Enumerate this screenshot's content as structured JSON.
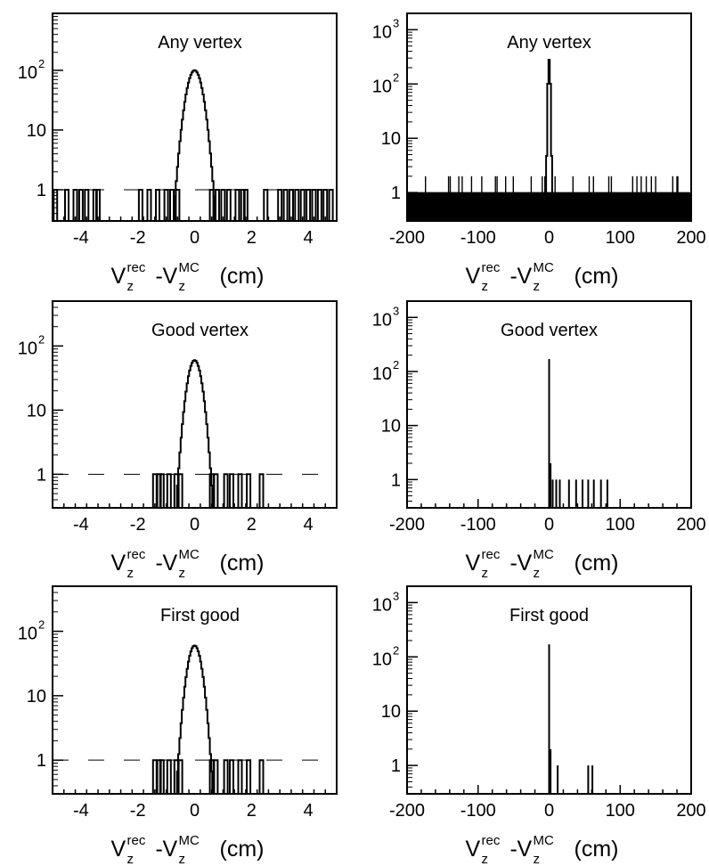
{
  "chart_data": [
    {
      "type": "histogram",
      "title": "Any vertex",
      "xlim": [
        -5,
        5
      ],
      "ylim": [
        0.3,
        900
      ],
      "yscale": "log",
      "xticks": [
        -4,
        -2,
        0,
        2,
        4
      ],
      "xtick_labels": [
        "-4",
        "-2",
        "0",
        "2",
        "4"
      ],
      "yticks": [
        1,
        10,
        100
      ],
      "ytick_labels": [
        "1",
        "10",
        "10",
        "2"
      ],
      "xlabel": {
        "base1": "V",
        "sub1": "z",
        "sup1": "rec",
        "dash": "-",
        "base2": "V",
        "sub2": "z",
        "sup2": "MC",
        "unit": "(cm)"
      },
      "peak": {
        "center": 0.0,
        "height": 100,
        "sigma": 0.22
      },
      "outliers": [
        {
          "x": -4.9,
          "y": 1
        },
        {
          "x": -4.5,
          "y": 1
        },
        {
          "x": -4.2,
          "y": 1
        },
        {
          "x": -4.0,
          "y": 1
        },
        {
          "x": -3.8,
          "y": 1
        },
        {
          "x": -3.5,
          "y": 1
        },
        {
          "x": -3.4,
          "y": 1
        },
        {
          "x": -1.9,
          "y": 1
        },
        {
          "x": -1.6,
          "y": 1
        },
        {
          "x": -1.3,
          "y": 1
        },
        {
          "x": -1.0,
          "y": 1
        },
        {
          "x": -0.8,
          "y": 1
        },
        {
          "x": -0.6,
          "y": 1
        },
        {
          "x": 0.6,
          "y": 1
        },
        {
          "x": 0.8,
          "y": 1
        },
        {
          "x": 1.0,
          "y": 1
        },
        {
          "x": 1.2,
          "y": 1
        },
        {
          "x": 1.5,
          "y": 1
        },
        {
          "x": 1.7,
          "y": 1
        },
        {
          "x": 1.8,
          "y": 1
        },
        {
          "x": 2.5,
          "y": 1
        },
        {
          "x": 3.0,
          "y": 1
        },
        {
          "x": 3.2,
          "y": 1
        },
        {
          "x": 3.4,
          "y": 1
        },
        {
          "x": 3.6,
          "y": 1
        },
        {
          "x": 3.8,
          "y": 1
        },
        {
          "x": 4.0,
          "y": 1
        },
        {
          "x": 4.2,
          "y": 1
        },
        {
          "x": 4.4,
          "y": 1
        },
        {
          "x": 4.6,
          "y": 1
        },
        {
          "x": 4.8,
          "y": 1
        }
      ]
    },
    {
      "type": "histogram",
      "title": "Any vertex",
      "xlim": [
        -200,
        200
      ],
      "ylim": [
        0.3,
        2000
      ],
      "yscale": "log",
      "xticks": [
        -200,
        -100,
        0,
        100,
        200
      ],
      "xtick_labels": [
        "-200",
        "-100",
        "0",
        "100",
        "200"
      ],
      "yticks": [
        1,
        10,
        100,
        1000
      ],
      "ytick_labels": [
        "1",
        "10",
        "10",
        "2",
        "10",
        "3"
      ],
      "xlabel": {
        "base1": "V",
        "sub1": "z",
        "sup1": "rec",
        "dash": "-",
        "base2": "V",
        "sub2": "z",
        "sup2": "MC",
        "unit": "(cm)"
      },
      "peak": {
        "center": 0.0,
        "height": 280,
        "sigma": 1.2
      },
      "dense_noise": {
        "from": -198,
        "to": 198,
        "level": 1,
        "secondary_level": 2
      }
    },
    {
      "type": "histogram",
      "title": "Good vertex",
      "xlim": [
        -5,
        5
      ],
      "ylim": [
        0.3,
        500
      ],
      "yscale": "log",
      "xticks": [
        -4,
        -2,
        0,
        2,
        4
      ],
      "xtick_labels": [
        "-4",
        "-2",
        "0",
        "2",
        "4"
      ],
      "yticks": [
        1,
        10,
        100
      ],
      "ytick_labels": [
        "1",
        "10",
        "10",
        "2"
      ],
      "xlabel": {
        "base1": "V",
        "sub1": "z",
        "sup1": "rec",
        "dash": "-",
        "base2": "V",
        "sub2": "z",
        "sup2": "MC",
        "unit": "(cm)"
      },
      "peak": {
        "center": 0.0,
        "height": 60,
        "sigma": 0.2
      },
      "outliers": [
        {
          "x": -1.4,
          "y": 1
        },
        {
          "x": -1.25,
          "y": 1
        },
        {
          "x": -1.15,
          "y": 1
        },
        {
          "x": -0.9,
          "y": 1
        },
        {
          "x": -0.65,
          "y": 1
        },
        {
          "x": -0.5,
          "y": 1
        },
        {
          "x": 0.6,
          "y": 1
        },
        {
          "x": 0.75,
          "y": 1
        },
        {
          "x": 1.1,
          "y": 1
        },
        {
          "x": 1.3,
          "y": 1
        },
        {
          "x": 1.6,
          "y": 1
        },
        {
          "x": 1.9,
          "y": 1
        },
        {
          "x": 2.35,
          "y": 1
        }
      ]
    },
    {
      "type": "histogram",
      "title": "Good vertex",
      "xlim": [
        -200,
        200
      ],
      "ylim": [
        0.3,
        2000
      ],
      "yscale": "log",
      "xticks": [
        -200,
        -100,
        0,
        100,
        200
      ],
      "xtick_labels": [
        "-200",
        "-100",
        "0",
        "100",
        "200"
      ],
      "yticks": [
        1,
        10,
        100,
        1000
      ],
      "ytick_labels": [
        "1",
        "10",
        "10",
        "2",
        "10",
        "3"
      ],
      "xlabel": {
        "base1": "V",
        "sub1": "z",
        "sup1": "rec",
        "dash": "-",
        "base2": "V",
        "sub2": "z",
        "sup2": "MC",
        "unit": "(cm)"
      },
      "spikes": [
        {
          "x": 0,
          "y": 170
        },
        {
          "x": 2,
          "y": 2
        },
        {
          "x": 5,
          "y": 1
        },
        {
          "x": 10,
          "y": 1
        },
        {
          "x": 15,
          "y": 1
        },
        {
          "x": 28,
          "y": 1
        },
        {
          "x": 38,
          "y": 1
        },
        {
          "x": 47,
          "y": 1
        },
        {
          "x": 55,
          "y": 1
        },
        {
          "x": 63,
          "y": 1
        },
        {
          "x": 73,
          "y": 1
        },
        {
          "x": 82,
          "y": 1
        }
      ]
    },
    {
      "type": "histogram",
      "title": "First good",
      "xlim": [
        -5,
        5
      ],
      "ylim": [
        0.3,
        500
      ],
      "yscale": "log",
      "xticks": [
        -4,
        -2,
        0,
        2,
        4
      ],
      "xtick_labels": [
        "-4",
        "-2",
        "0",
        "2",
        "4"
      ],
      "yticks": [
        1,
        10,
        100
      ],
      "ytick_labels": [
        "1",
        "10",
        "10",
        "2"
      ],
      "xlabel": {
        "base1": "V",
        "sub1": "z",
        "sup1": "rec",
        "dash": "-",
        "base2": "V",
        "sub2": "z",
        "sup2": "MC",
        "unit": "(cm)"
      },
      "peak": {
        "center": 0.0,
        "height": 60,
        "sigma": 0.2
      },
      "outliers": [
        {
          "x": -1.4,
          "y": 1
        },
        {
          "x": -1.25,
          "y": 1
        },
        {
          "x": -1.15,
          "y": 1
        },
        {
          "x": -0.9,
          "y": 1
        },
        {
          "x": -0.65,
          "y": 1
        },
        {
          "x": -0.5,
          "y": 1
        },
        {
          "x": 0.6,
          "y": 1
        },
        {
          "x": 0.75,
          "y": 1
        },
        {
          "x": 1.1,
          "y": 1
        },
        {
          "x": 1.3,
          "y": 1
        },
        {
          "x": 1.6,
          "y": 1
        },
        {
          "x": 1.9,
          "y": 1
        },
        {
          "x": 2.35,
          "y": 1
        }
      ]
    },
    {
      "type": "histogram",
      "title": "First good",
      "xlim": [
        -200,
        200
      ],
      "ylim": [
        0.3,
        2000
      ],
      "yscale": "log",
      "xticks": [
        -200,
        -100,
        0,
        100,
        200
      ],
      "xtick_labels": [
        "-200",
        "-100",
        "0",
        "100",
        "200"
      ],
      "yticks": [
        1,
        10,
        100,
        1000
      ],
      "ytick_labels": [
        "1",
        "10",
        "10",
        "2",
        "10",
        "3"
      ],
      "xlabel": {
        "base1": "V",
        "sub1": "z",
        "sup1": "rec",
        "dash": "-",
        "base2": "V",
        "sub2": "z",
        "sup2": "MC",
        "unit": "(cm)"
      },
      "spikes": [
        {
          "x": 0,
          "y": 170
        },
        {
          "x": 2,
          "y": 2
        },
        {
          "x": 12,
          "y": 1
        },
        {
          "x": 55,
          "y": 1
        },
        {
          "x": 61,
          "y": 1
        }
      ]
    }
  ]
}
